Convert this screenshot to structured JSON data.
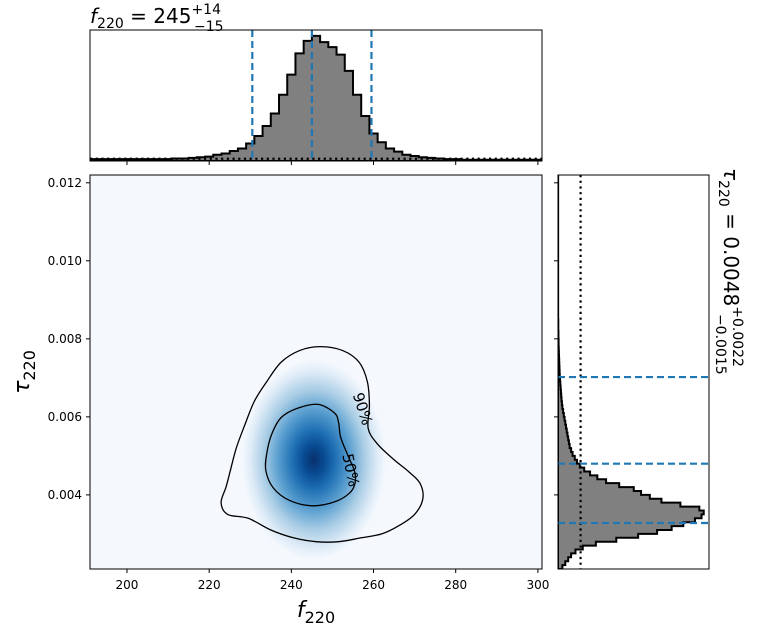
{
  "chart_data": {
    "type": "corner",
    "top_title": {
      "var": "f",
      "sub": "220",
      "eq": " = 245",
      "sup": "+14",
      "subsc": "−15"
    },
    "right_title": {
      "var": "τ",
      "sub": "220",
      "eq": " = 0.0048",
      "sup": "+0.0022",
      "subsc": "−0.0015"
    },
    "xlabel": {
      "var": "f",
      "sub": "220"
    },
    "ylabel": {
      "var": "τ",
      "sub": "220"
    },
    "xlim": [
      191,
      301
    ],
    "ylim": [
      0.0021,
      0.0122
    ],
    "xticks": [
      200,
      220,
      240,
      260,
      280,
      300
    ],
    "yticks": [
      0.004,
      0.006,
      0.008,
      0.01,
      0.012
    ],
    "ytick_labels": [
      "0.004",
      "0.006",
      "0.008",
      "0.010",
      "0.012"
    ],
    "f_quantiles": [
      230.5,
      245,
      259.5
    ],
    "tau_quantiles": [
      0.00328,
      0.0048,
      0.00702
    ],
    "f_prior": 0.018,
    "tau_prior_x": 0.155,
    "f_histogram": {
      "start": 191,
      "bin_width": 2,
      "counts": [
        0.015,
        0.015,
        0.015,
        0.015,
        0.015,
        0.015,
        0.015,
        0.015,
        0.015,
        0.015,
        0.02,
        0.02,
        0.025,
        0.03,
        0.035,
        0.05,
        0.06,
        0.08,
        0.1,
        0.14,
        0.2,
        0.28,
        0.38,
        0.53,
        0.69,
        0.86,
        0.96,
        1.0,
        0.95,
        0.91,
        0.85,
        0.72,
        0.53,
        0.36,
        0.22,
        0.15,
        0.1,
        0.075,
        0.05,
        0.04,
        0.03,
        0.025,
        0.02,
        0.015,
        0.015,
        0.01,
        0.01,
        0.01,
        0.01,
        0.01,
        0.01,
        0.01,
        0.01,
        0.01,
        0.01
      ]
    },
    "tau_histogram": {
      "start": 0.0021,
      "bin_width": 0.0001,
      "counts": [
        0.03,
        0.05,
        0.07,
        0.09,
        0.12,
        0.17,
        0.26,
        0.4,
        0.55,
        0.68,
        0.78,
        0.86,
        0.94,
        0.985,
        1.0,
        0.97,
        0.84,
        0.71,
        0.63,
        0.57,
        0.52,
        0.42,
        0.33,
        0.27,
        0.22,
        0.18,
        0.15,
        0.13,
        0.115,
        0.1,
        0.09,
        0.08,
        0.075,
        0.07,
        0.065,
        0.06,
        0.055,
        0.05,
        0.045,
        0.04,
        0.035,
        0.03,
        0.027,
        0.024,
        0.022,
        0.02,
        0.018,
        0.016,
        0.014,
        0.012,
        0.011,
        0.01,
        0.009,
        0.008,
        0.007,
        0.006,
        0.005,
        0.004,
        0.004,
        0.003,
        0.003,
        0.002,
        0.002,
        0.002,
        0.001,
        0.001,
        0.001,
        0.001,
        0.001,
        0.001,
        0.001,
        0.001,
        0.001,
        0.001,
        0.001,
        0.001,
        0.001,
        0.001,
        0.001,
        0.001,
        0.001,
        0.001,
        0.001,
        0.001,
        0.001,
        0.001,
        0.001,
        0.001,
        0.001,
        0.001,
        0.001,
        0.001,
        0.001,
        0.001,
        0.001,
        0.001,
        0.001,
        0.001,
        0.001,
        0.001,
        0.001
      ]
    },
    "density_peak": {
      "f": 245.5,
      "tau": 0.0049
    },
    "contours": [
      {
        "label": "50%",
        "label_at": {
          "f": 254.3,
          "tau": 0.00463,
          "angle": 78
        },
        "points": [
          [
            250.5,
            0.0061
          ],
          [
            246.5,
            0.00632
          ],
          [
            241.5,
            0.00622
          ],
          [
            237.5,
            0.00598
          ],
          [
            235.2,
            0.00555
          ],
          [
            234.0,
            0.00505
          ],
          [
            233.8,
            0.00462
          ],
          [
            235.6,
            0.00418
          ],
          [
            239.5,
            0.00386
          ],
          [
            245.0,
            0.00372
          ],
          [
            250.5,
            0.00382
          ],
          [
            254.2,
            0.00405
          ],
          [
            255.5,
            0.0043
          ],
          [
            255.4,
            0.0046
          ],
          [
            253.8,
            0.005
          ],
          [
            252.0,
            0.00548
          ],
          [
            251.5,
            0.00585
          ]
        ]
      },
      {
        "label": "90%",
        "label_at": {
          "f": 257.2,
          "tau": 0.0062,
          "angle": 72
        },
        "points": [
          [
            256.5,
            0.0074
          ],
          [
            252.5,
            0.0077
          ],
          [
            247.0,
            0.0078
          ],
          [
            242.0,
            0.0077
          ],
          [
            237.5,
            0.0074
          ],
          [
            234.0,
            0.0069
          ],
          [
            231.0,
            0.0064
          ],
          [
            228.7,
            0.0058
          ],
          [
            226.6,
            0.0052
          ],
          [
            225.1,
            0.0046
          ],
          [
            224.1,
            0.0042
          ],
          [
            222.9,
            0.0038
          ],
          [
            224.5,
            0.0035
          ],
          [
            229.5,
            0.0034
          ],
          [
            235.0,
            0.0031
          ],
          [
            240.5,
            0.0029
          ],
          [
            246.0,
            0.0028
          ],
          [
            251.5,
            0.0028
          ],
          [
            257.0,
            0.0029
          ],
          [
            262.0,
            0.003
          ],
          [
            266.0,
            0.0032
          ],
          [
            270.0,
            0.0035
          ],
          [
            272.0,
            0.0039
          ],
          [
            271.3,
            0.0043
          ],
          [
            268.5,
            0.0046
          ],
          [
            265.0,
            0.0049
          ],
          [
            261.0,
            0.0053
          ],
          [
            258.7,
            0.0057
          ],
          [
            259.0,
            0.0063
          ],
          [
            258.5,
            0.0069
          ]
        ]
      }
    ]
  }
}
